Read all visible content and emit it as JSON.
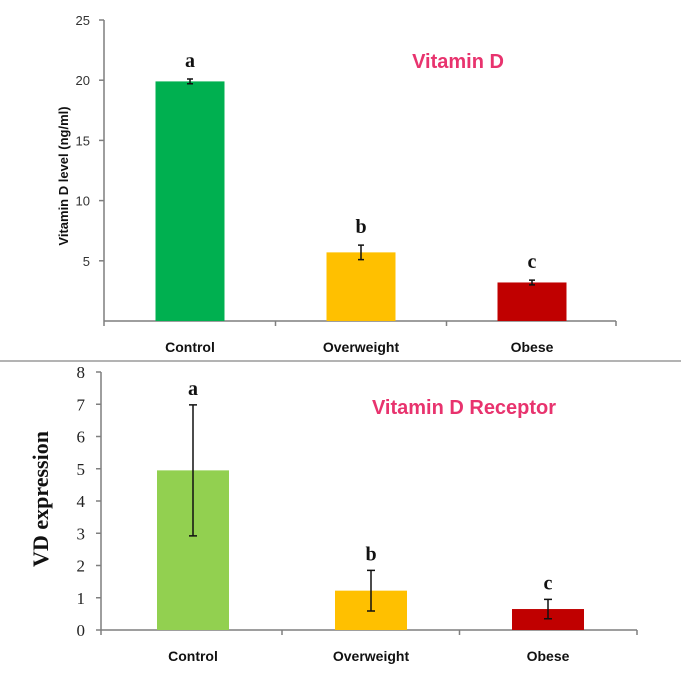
{
  "chart_data": [
    {
      "type": "bar",
      "title": "Vitamin D",
      "title_color": "#e8336e",
      "xlabel": "",
      "ylabel": "Vitamin D level (ng/ml)",
      "categories": [
        "Control",
        "Overweight",
        "Obese"
      ],
      "values": [
        19.9,
        5.7,
        3.2
      ],
      "errors": [
        0.2,
        0.6,
        0.2
      ],
      "colors": [
        "#00b050",
        "#ffc000",
        "#c00000"
      ],
      "significance": [
        "a",
        "b",
        "c"
      ],
      "ylim": [
        0,
        25
      ],
      "yticks": [
        5,
        10,
        15,
        20,
        25
      ],
      "grid": false
    },
    {
      "type": "bar",
      "title": "Vitamin D Receptor",
      "title_color": "#e8336e",
      "xlabel": "",
      "ylabel": "VD expression",
      "categories": [
        "Control",
        "Overweight",
        "Obese"
      ],
      "values": [
        4.95,
        1.22,
        0.65
      ],
      "errors": [
        2.03,
        0.63,
        0.3
      ],
      "colors": [
        "#92d050",
        "#ffc000",
        "#c00000"
      ],
      "significance": [
        "a",
        "b",
        "c"
      ],
      "ylim": [
        0,
        8
      ],
      "yticks": [
        0,
        1,
        2,
        3,
        4,
        5,
        6,
        7,
        8
      ],
      "grid": false
    }
  ]
}
